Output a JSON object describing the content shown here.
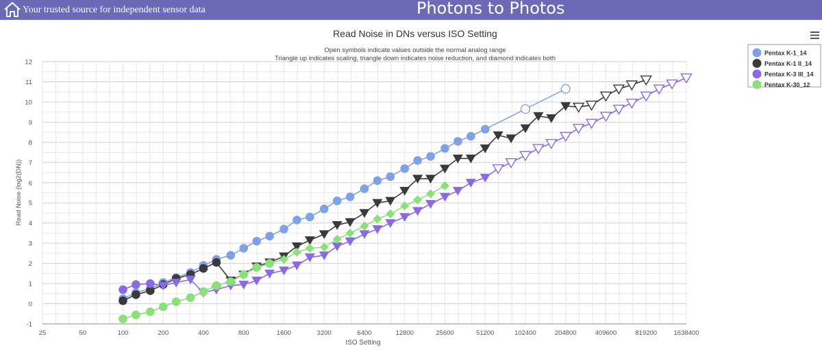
{
  "header": {
    "tagline": "Your trusted source for independent sensor data",
    "site_title": "Photons to Photos",
    "home_icon": "home-icon",
    "bar_color": "#6b6ab7"
  },
  "menu_icon": "hamburger-menu-icon",
  "chart_data": {
    "type": "line",
    "title": "Read Noise in DNs versus ISO Setting",
    "subtitle_lines": [
      "Open symbols indicate values outside the normal analog range",
      "Triangle up indicates scaling, triangle down indicates noise reduction, and diamond indicates both"
    ],
    "xlabel": "ISO Setting",
    "ylabel": "Read Noise (log2(DN))",
    "x_scale": "log2",
    "x_ticks": [
      "25",
      "50",
      "100",
      "200",
      "400",
      "800",
      "1600",
      "3200",
      "6400",
      "12800",
      "25600",
      "51200",
      "102400",
      "204800",
      "409600",
      "819200",
      "1638400"
    ],
    "xlim": [
      25,
      1638400
    ],
    "ylim": [
      -1,
      12
    ],
    "y_ticks": [
      -1,
      0,
      1,
      2,
      3,
      4,
      5,
      6,
      7,
      8,
      9,
      10,
      11,
      12
    ],
    "grid": true,
    "legend_position": "top-right",
    "series": [
      {
        "name": "Pentax K-1_14",
        "color": "#7ea2e4",
        "points": [
          {
            "iso": 100,
            "y": 0.25,
            "m": "circle"
          },
          {
            "iso": 125,
            "y": 0.55,
            "m": "circle"
          },
          {
            "iso": 160,
            "y": 0.75,
            "m": "circle"
          },
          {
            "iso": 200,
            "y": 1.05,
            "m": "circle"
          },
          {
            "iso": 250,
            "y": 1.3,
            "m": "circle"
          },
          {
            "iso": 320,
            "y": 1.55,
            "m": "circle"
          },
          {
            "iso": 400,
            "y": 1.9,
            "m": "circle"
          },
          {
            "iso": 500,
            "y": 2.2,
            "m": "circle"
          },
          {
            "iso": 640,
            "y": 2.4,
            "m": "circle"
          },
          {
            "iso": 800,
            "y": 2.75,
            "m": "circle"
          },
          {
            "iso": 1000,
            "y": 3.1,
            "m": "circle"
          },
          {
            "iso": 1250,
            "y": 3.35,
            "m": "circle"
          },
          {
            "iso": 1600,
            "y": 3.7,
            "m": "circle"
          },
          {
            "iso": 2000,
            "y": 4.15,
            "m": "circle"
          },
          {
            "iso": 2500,
            "y": 4.3,
            "m": "circle"
          },
          {
            "iso": 3200,
            "y": 4.7,
            "m": "circle"
          },
          {
            "iso": 4000,
            "y": 5.1,
            "m": "circle"
          },
          {
            "iso": 5000,
            "y": 5.3,
            "m": "circle"
          },
          {
            "iso": 6400,
            "y": 5.7,
            "m": "circle"
          },
          {
            "iso": 8000,
            "y": 6.1,
            "m": "circle"
          },
          {
            "iso": 10000,
            "y": 6.3,
            "m": "circle"
          },
          {
            "iso": 12800,
            "y": 6.7,
            "m": "circle"
          },
          {
            "iso": 16000,
            "y": 7.1,
            "m": "circle"
          },
          {
            "iso": 20000,
            "y": 7.3,
            "m": "circle"
          },
          {
            "iso": 25600,
            "y": 7.7,
            "m": "circle"
          },
          {
            "iso": 32000,
            "y": 8.05,
            "m": "circle"
          },
          {
            "iso": 40000,
            "y": 8.3,
            "m": "circle"
          },
          {
            "iso": 51200,
            "y": 8.65,
            "m": "circle"
          },
          {
            "iso": 102400,
            "y": 9.65,
            "m": "circle-open"
          },
          {
            "iso": 204800,
            "y": 10.65,
            "m": "circle-open"
          }
        ]
      },
      {
        "name": "Pentax K-1 II_14",
        "color": "#3a3a3c",
        "points": [
          {
            "iso": 100,
            "y": 0.15,
            "m": "circle"
          },
          {
            "iso": 125,
            "y": 0.45,
            "m": "circle"
          },
          {
            "iso": 160,
            "y": 0.65,
            "m": "circle"
          },
          {
            "iso": 200,
            "y": 0.95,
            "m": "circle"
          },
          {
            "iso": 250,
            "y": 1.25,
            "m": "circle"
          },
          {
            "iso": 320,
            "y": 1.45,
            "m": "circle"
          },
          {
            "iso": 400,
            "y": 1.75,
            "m": "circle"
          },
          {
            "iso": 500,
            "y": 2.05,
            "m": "circle"
          },
          {
            "iso": 640,
            "y": 1.15,
            "m": "tri-down"
          },
          {
            "iso": 800,
            "y": 1.45,
            "m": "tri-down"
          },
          {
            "iso": 1000,
            "y": 1.85,
            "m": "tri-down"
          },
          {
            "iso": 1250,
            "y": 2.05,
            "m": "tri-down"
          },
          {
            "iso": 1600,
            "y": 2.35,
            "m": "tri-down"
          },
          {
            "iso": 2000,
            "y": 2.85,
            "m": "tri-down"
          },
          {
            "iso": 2500,
            "y": 3.15,
            "m": "tri-down"
          },
          {
            "iso": 3200,
            "y": 3.45,
            "m": "tri-down"
          },
          {
            "iso": 4000,
            "y": 3.9,
            "m": "tri-down"
          },
          {
            "iso": 5000,
            "y": 4.05,
            "m": "tri-down"
          },
          {
            "iso": 6400,
            "y": 4.5,
            "m": "tri-down"
          },
          {
            "iso": 8000,
            "y": 5.0,
            "m": "tri-down"
          },
          {
            "iso": 10000,
            "y": 5.1,
            "m": "tri-down"
          },
          {
            "iso": 12800,
            "y": 5.6,
            "m": "tri-down"
          },
          {
            "iso": 16000,
            "y": 6.2,
            "m": "tri-down"
          },
          {
            "iso": 20000,
            "y": 6.2,
            "m": "tri-down"
          },
          {
            "iso": 25600,
            "y": 6.7,
            "m": "tri-down"
          },
          {
            "iso": 32000,
            "y": 7.2,
            "m": "tri-down"
          },
          {
            "iso": 40000,
            "y": 7.2,
            "m": "tri-down"
          },
          {
            "iso": 51200,
            "y": 7.7,
            "m": "tri-down"
          },
          {
            "iso": 64000,
            "y": 8.35,
            "m": "tri-down"
          },
          {
            "iso": 80000,
            "y": 8.2,
            "m": "tri-down"
          },
          {
            "iso": 102400,
            "y": 8.7,
            "m": "tri-down"
          },
          {
            "iso": 128000,
            "y": 9.3,
            "m": "tri-down"
          },
          {
            "iso": 160000,
            "y": 9.2,
            "m": "tri-down"
          },
          {
            "iso": 204800,
            "y": 9.8,
            "m": "tri-down"
          },
          {
            "iso": 256000,
            "y": 9.75,
            "m": "tri-down-open"
          },
          {
            "iso": 320000,
            "y": 9.85,
            "m": "tri-down-open"
          },
          {
            "iso": 409600,
            "y": 10.3,
            "m": "tri-down-open"
          },
          {
            "iso": 512000,
            "y": 10.65,
            "m": "tri-down-open"
          },
          {
            "iso": 640000,
            "y": 10.85,
            "m": "tri-down-open"
          },
          {
            "iso": 819200,
            "y": 11.1,
            "m": "tri-down-open"
          }
        ]
      },
      {
        "name": "Pentax K-3 III_14",
        "color": "#8a6ae0",
        "points": [
          {
            "iso": 100,
            "y": 0.7,
            "m": "circle"
          },
          {
            "iso": 125,
            "y": 0.95,
            "m": "circle"
          },
          {
            "iso": 160,
            "y": 1.0,
            "m": "circle"
          },
          {
            "iso": 200,
            "y": 0.9,
            "m": "tri-down"
          },
          {
            "iso": 250,
            "y": 1.05,
            "m": "tri-down"
          },
          {
            "iso": 320,
            "y": 1.2,
            "m": "tri-down"
          },
          {
            "iso": 400,
            "y": 0.55,
            "m": "tri-down"
          },
          {
            "iso": 500,
            "y": 0.7,
            "m": "tri-down"
          },
          {
            "iso": 640,
            "y": 0.9,
            "m": "tri-down"
          },
          {
            "iso": 800,
            "y": 0.95,
            "m": "tri-down"
          },
          {
            "iso": 1000,
            "y": 1.15,
            "m": "tri-down"
          },
          {
            "iso": 1250,
            "y": 1.5,
            "m": "tri-down"
          },
          {
            "iso": 1600,
            "y": 1.65,
            "m": "tri-down"
          },
          {
            "iso": 2000,
            "y": 1.9,
            "m": "tri-down"
          },
          {
            "iso": 2500,
            "y": 2.3,
            "m": "tri-down"
          },
          {
            "iso": 3200,
            "y": 2.4,
            "m": "tri-down"
          },
          {
            "iso": 4000,
            "y": 2.85,
            "m": "tri-down"
          },
          {
            "iso": 5000,
            "y": 3.1,
            "m": "tri-down"
          },
          {
            "iso": 6400,
            "y": 3.45,
            "m": "tri-down"
          },
          {
            "iso": 8000,
            "y": 3.7,
            "m": "tri-down"
          },
          {
            "iso": 10000,
            "y": 4.0,
            "m": "tri-down"
          },
          {
            "iso": 12800,
            "y": 4.3,
            "m": "tri-down"
          },
          {
            "iso": 16000,
            "y": 4.6,
            "m": "tri-down"
          },
          {
            "iso": 20000,
            "y": 4.95,
            "m": "tri-down"
          },
          {
            "iso": 25600,
            "y": 5.3,
            "m": "tri-down"
          },
          {
            "iso": 32000,
            "y": 5.6,
            "m": "tri-down"
          },
          {
            "iso": 40000,
            "y": 6.0,
            "m": "tri-down"
          },
          {
            "iso": 51200,
            "y": 6.25,
            "m": "tri-down"
          },
          {
            "iso": 64000,
            "y": 6.7,
            "m": "tri-down-open"
          },
          {
            "iso": 80000,
            "y": 7.0,
            "m": "tri-down-open"
          },
          {
            "iso": 102400,
            "y": 7.35,
            "m": "tri-down-open"
          },
          {
            "iso": 128000,
            "y": 7.7,
            "m": "tri-down-open"
          },
          {
            "iso": 160000,
            "y": 7.95,
            "m": "tri-down-open"
          },
          {
            "iso": 204800,
            "y": 8.3,
            "m": "tri-down-open"
          },
          {
            "iso": 256000,
            "y": 8.7,
            "m": "tri-down-open"
          },
          {
            "iso": 320000,
            "y": 8.95,
            "m": "tri-down-open"
          },
          {
            "iso": 409600,
            "y": 9.3,
            "m": "tri-down-open"
          },
          {
            "iso": 512000,
            "y": 9.65,
            "m": "tri-down-open"
          },
          {
            "iso": 640000,
            "y": 9.95,
            "m": "tri-down-open"
          },
          {
            "iso": 819200,
            "y": 10.3,
            "m": "tri-down-open"
          },
          {
            "iso": 1024000,
            "y": 10.65,
            "m": "tri-down-open"
          },
          {
            "iso": 1280000,
            "y": 10.9,
            "m": "tri-down-open"
          },
          {
            "iso": 1638400,
            "y": 11.2,
            "m": "tri-down-open"
          }
        ]
      },
      {
        "name": "Pentax K-30_12",
        "color": "#8ae07a",
        "points": [
          {
            "iso": 100,
            "y": -0.75,
            "m": "circle"
          },
          {
            "iso": 125,
            "y": -0.55,
            "m": "circle"
          },
          {
            "iso": 160,
            "y": -0.4,
            "m": "circle"
          },
          {
            "iso": 200,
            "y": -0.15,
            "m": "circle"
          },
          {
            "iso": 250,
            "y": 0.1,
            "m": "circle"
          },
          {
            "iso": 320,
            "y": 0.3,
            "m": "circle"
          },
          {
            "iso": 400,
            "y": 0.6,
            "m": "circle"
          },
          {
            "iso": 500,
            "y": 0.9,
            "m": "circle"
          },
          {
            "iso": 640,
            "y": 1.1,
            "m": "circle"
          },
          {
            "iso": 800,
            "y": 1.45,
            "m": "circle"
          },
          {
            "iso": 1000,
            "y": 1.8,
            "m": "circle"
          },
          {
            "iso": 1250,
            "y": 2.0,
            "m": "circle"
          },
          {
            "iso": 1600,
            "y": 2.2,
            "m": "diamond"
          },
          {
            "iso": 2000,
            "y": 2.55,
            "m": "diamond"
          },
          {
            "iso": 2500,
            "y": 2.75,
            "m": "diamond"
          },
          {
            "iso": 3200,
            "y": 2.8,
            "m": "diamond"
          },
          {
            "iso": 4000,
            "y": 3.2,
            "m": "diamond"
          },
          {
            "iso": 5000,
            "y": 3.5,
            "m": "diamond"
          },
          {
            "iso": 6400,
            "y": 3.85,
            "m": "diamond"
          },
          {
            "iso": 8000,
            "y": 4.2,
            "m": "diamond"
          },
          {
            "iso": 10000,
            "y": 4.45,
            "m": "diamond"
          },
          {
            "iso": 12800,
            "y": 4.85,
            "m": "diamond"
          },
          {
            "iso": 16000,
            "y": 5.15,
            "m": "diamond"
          },
          {
            "iso": 20000,
            "y": 5.45,
            "m": "diamond"
          },
          {
            "iso": 25600,
            "y": 5.85,
            "m": "diamond"
          }
        ]
      }
    ]
  }
}
